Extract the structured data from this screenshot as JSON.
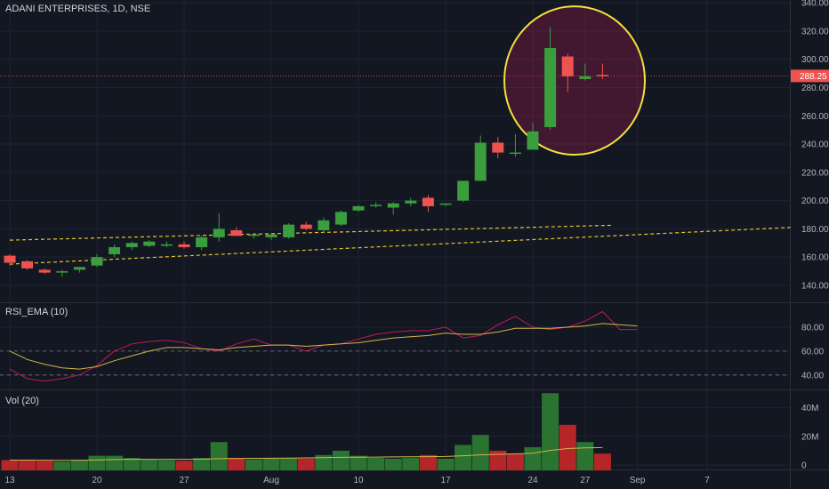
{
  "header": {
    "title": "ADANI ENTERPRISES, 1D, NSE"
  },
  "colors": {
    "background": "#131722",
    "up": "#26a69a",
    "upCandle": "#3a9d3e",
    "down": "#ef5350",
    "grid": "#1f2330",
    "axis_text": "#b2b5be",
    "trend": "#e6c229",
    "rsi_line": "#c2185b",
    "ema_line": "#d4b44a",
    "price_line": "#ef5350",
    "circle": "#f0e23c",
    "circle_fill": "rgba(233,30,99,0.22)"
  },
  "chart_data": [
    {
      "type": "candlestick",
      "title": "ADANI ENTERPRISES, 1D, NSE",
      "ylim": [
        128,
        342
      ],
      "y_ticks": [
        "140.00",
        "160.00",
        "180.00",
        "200.00",
        "220.00",
        "240.00",
        "260.00",
        "280.00",
        "300.00",
        "320.00",
        "340.00"
      ],
      "last_price": "288.25",
      "x_ticks": [
        {
          "label": "13",
          "i": 0
        },
        {
          "label": "20",
          "i": 5
        },
        {
          "label": "27",
          "i": 10
        },
        {
          "label": "Aug",
          "i": 15
        },
        {
          "label": "10",
          "i": 20
        },
        {
          "label": "17",
          "i": 25
        },
        {
          "label": "24",
          "i": 30
        },
        {
          "label": "27",
          "i": 33
        },
        {
          "label": "Sep",
          "i": 36
        },
        {
          "label": "7",
          "i": 40
        }
      ],
      "candles": [
        {
          "o": 161,
          "h": 162,
          "l": 154,
          "c": 156
        },
        {
          "o": 157,
          "h": 158,
          "l": 151,
          "c": 152
        },
        {
          "o": 151,
          "h": 152,
          "l": 148,
          "c": 149
        },
        {
          "o": 149,
          "h": 151,
          "l": 146,
          "c": 150
        },
        {
          "o": 151,
          "h": 153,
          "l": 149,
          "c": 153
        },
        {
          "o": 154,
          "h": 162,
          "l": 153,
          "c": 160
        },
        {
          "o": 162,
          "h": 169,
          "l": 160,
          "c": 167
        },
        {
          "o": 167,
          "h": 171,
          "l": 165,
          "c": 170
        },
        {
          "o": 168,
          "h": 172,
          "l": 167,
          "c": 171
        },
        {
          "o": 168,
          "h": 171,
          "l": 167,
          "c": 169
        },
        {
          "o": 169,
          "h": 171,
          "l": 166,
          "c": 167
        },
        {
          "o": 167,
          "h": 175,
          "l": 165,
          "c": 174
        },
        {
          "o": 174,
          "h": 191,
          "l": 171,
          "c": 180
        },
        {
          "o": 179,
          "h": 181,
          "l": 175,
          "c": 175
        },
        {
          "o": 175,
          "h": 177,
          "l": 173,
          "c": 176
        },
        {
          "o": 174,
          "h": 177,
          "l": 172,
          "c": 176
        },
        {
          "o": 174,
          "h": 184,
          "l": 173,
          "c": 183
        },
        {
          "o": 183,
          "h": 185,
          "l": 179,
          "c": 180
        },
        {
          "o": 179,
          "h": 188,
          "l": 177,
          "c": 186
        },
        {
          "o": 183,
          "h": 193,
          "l": 182,
          "c": 192
        },
        {
          "o": 193,
          "h": 197,
          "l": 192,
          "c": 196
        },
        {
          "o": 197,
          "h": 199,
          "l": 195,
          "c": 197
        },
        {
          "o": 195,
          "h": 199,
          "l": 190,
          "c": 198
        },
        {
          "o": 198,
          "h": 202,
          "l": 196,
          "c": 200
        },
        {
          "o": 202,
          "h": 204,
          "l": 192,
          "c": 196
        },
        {
          "o": 197,
          "h": 198,
          "l": 196,
          "c": 198
        },
        {
          "o": 200,
          "h": 214,
          "l": 199,
          "c": 214
        },
        {
          "o": 214,
          "h": 246,
          "l": 214,
          "c": 241
        },
        {
          "o": 241,
          "h": 245,
          "l": 230,
          "c": 234
        },
        {
          "o": 234,
          "h": 247,
          "l": 231,
          "c": 234
        },
        {
          "o": 236,
          "h": 255,
          "l": 236,
          "c": 249
        },
        {
          "o": 252,
          "h": 323,
          "l": 250,
          "c": 308
        },
        {
          "o": 302,
          "h": 304,
          "l": 277,
          "c": 288
        },
        {
          "o": 286,
          "h": 297,
          "l": 285,
          "c": 288
        },
        {
          "o": 289,
          "h": 297,
          "l": 286,
          "c": 288
        }
      ]
    },
    {
      "type": "line",
      "title": "RSI_EMA (10)",
      "ylim": [
        28,
        100
      ],
      "y_ticks": [
        "40.00",
        "60.00",
        "80.00"
      ],
      "series": [
        {
          "values": [
            45,
            37,
            35,
            37,
            40,
            48,
            60,
            66,
            68,
            69,
            67,
            62,
            60,
            66,
            70,
            65,
            65,
            60,
            65,
            66,
            70,
            74,
            76,
            77,
            77,
            80,
            71,
            73,
            82,
            89,
            80,
            78,
            80,
            85,
            93,
            78,
            78
          ]
        },
        {
          "values": [
            60,
            53,
            49,
            46,
            45,
            47,
            52,
            56,
            60,
            63,
            63,
            62,
            61,
            63,
            64,
            65,
            65,
            64,
            65,
            66,
            67,
            69,
            71,
            72,
            73,
            75,
            74,
            74,
            76,
            79,
            79,
            79,
            80,
            81,
            83,
            82,
            81
          ]
        }
      ]
    },
    {
      "type": "bar",
      "title": "Vol (20)",
      "ylim": [
        -3,
        52
      ],
      "y_ticks": [
        "0",
        "20M",
        "40M"
      ],
      "values": [
        3.5,
        3.5,
        3.0,
        2.5,
        3.5,
        6.5,
        6.5,
        5.0,
        4.0,
        3.5,
        3.0,
        5.0,
        16.0,
        5.0,
        4.0,
        5.0,
        5.0,
        4.5,
        7.0,
        10.0,
        6.5,
        5.0,
        4.5,
        5.0,
        7.0,
        4.5,
        14.0,
        21.0,
        10.0,
        8.0,
        12.5,
        50.0,
        28.0,
        16.0,
        8.0
      ],
      "up": [
        false,
        false,
        false,
        true,
        true,
        true,
        true,
        true,
        true,
        true,
        false,
        true,
        true,
        false,
        true,
        true,
        true,
        false,
        true,
        true,
        true,
        true,
        true,
        true,
        false,
        true,
        true,
        true,
        false,
        false,
        true,
        true,
        false,
        true,
        false
      ],
      "ma": [
        3.5,
        3.5,
        3.4,
        3.3,
        3.4,
        3.6,
        3.9,
        4.0,
        4.0,
        4.0,
        4.0,
        4.1,
        4.5,
        4.6,
        4.7,
        4.8,
        4.9,
        5.0,
        5.2,
        5.4,
        5.5,
        5.6,
        5.7,
        5.8,
        5.9,
        6.0,
        6.5,
        7.1,
        7.5,
        7.8,
        8.3,
        10.2,
        11.5,
        12.0,
        12.2
      ]
    }
  ]
}
